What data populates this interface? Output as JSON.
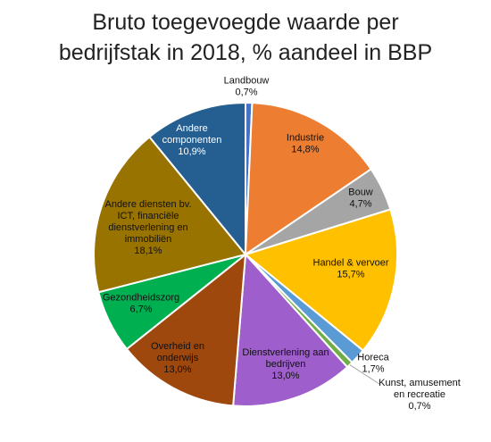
{
  "chart_data": {
    "type": "pie",
    "title_lines": [
      "Bruto toegevoegde waarde per",
      "bedrijfstak in 2018, % aandeel in BBP"
    ],
    "slices": [
      {
        "name": "Landbouw",
        "value": 0.7,
        "value_label": "0,7%",
        "color": "#4472c4"
      },
      {
        "name": "Industrie",
        "value": 14.8,
        "value_label": "14,8%",
        "color": "#ed7d31"
      },
      {
        "name": "Bouw",
        "value": 4.7,
        "value_label": "4,7%",
        "color": "#a5a5a5"
      },
      {
        "name": "Handel & vervoer",
        "value": 15.7,
        "value_label": "15,7%",
        "color": "#ffc000"
      },
      {
        "name": "Horeca",
        "value": 1.7,
        "value_label": "1,7%",
        "color": "#5b9bd5"
      },
      {
        "name": "Kunst, amusement en recreatie",
        "value": 0.7,
        "value_label": "0,7%",
        "color": "#70ad47"
      },
      {
        "name": "Dienstverlening aan bedrijven",
        "value": 13.0,
        "value_label": "13,0%",
        "color": "#9e5ecb"
      },
      {
        "name": "Overheid en onderwijs",
        "value": 13.0,
        "value_label": "13,0%",
        "color": "#9e480e"
      },
      {
        "name": "Gezondheidszorg",
        "value": 6.7,
        "value_label": "6,7%",
        "color": "#00b050"
      },
      {
        "name": "Andere diensten bv. ICT, financiële dienstverlening en immobiliën",
        "value": 18.1,
        "value_label": "18,1%",
        "color": "#997300"
      },
      {
        "name": "Andere componenten",
        "value": 10.9,
        "value_label": "10,9%",
        "color": "#255e91"
      }
    ],
    "label_lines": [
      [
        "Landbouw",
        "0,7%"
      ],
      [
        "Industrie",
        "14,8%"
      ],
      [
        "Bouw",
        "4,7%"
      ],
      [
        "Handel & vervoer",
        "15,7%"
      ],
      [
        "Horeca",
        "1,7%"
      ],
      [
        "Kunst, amusement",
        "en recreatie",
        "0,7%"
      ],
      [
        "Dienstverlening aan",
        "bedrijven",
        "13,0%"
      ],
      [
        "Overheid en",
        "onderwijs",
        "13,0%"
      ],
      [
        "Gezondheidszorg",
        "6,7%"
      ],
      [
        "Andere diensten bv.",
        "ICT, financiële",
        "dienstverlening en",
        "immobiliën",
        "18,1%"
      ],
      [
        "Andere",
        "componenten",
        "10,9%"
      ]
    ]
  }
}
